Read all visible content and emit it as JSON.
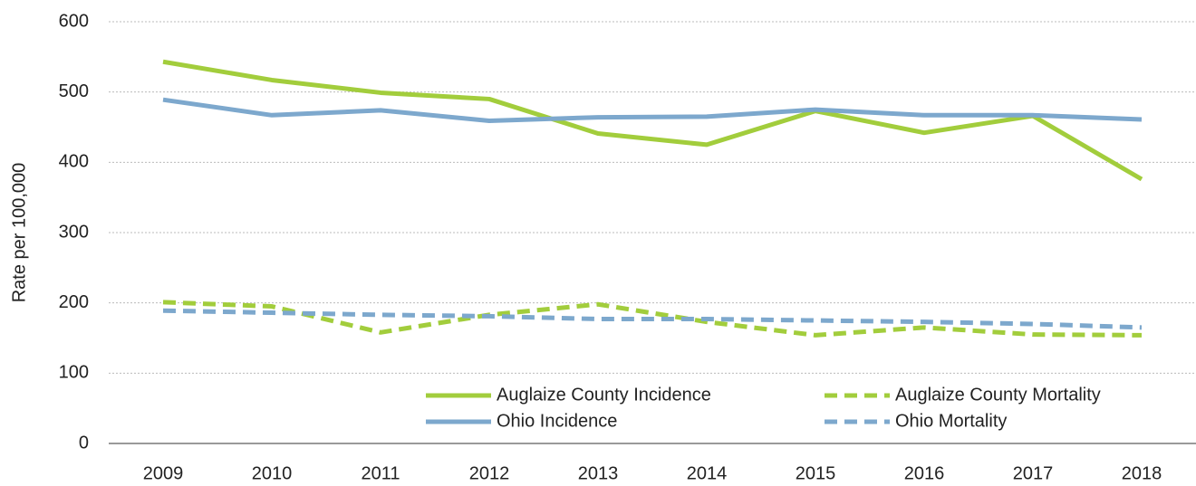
{
  "chart_data": {
    "type": "line",
    "y_label": "Rate per 100,000",
    "categories": [
      "2009",
      "2010",
      "2011",
      "2012",
      "2013",
      "2014",
      "2015",
      "2016",
      "2017",
      "2018"
    ],
    "series": [
      {
        "name": "Auglaize County Incidence",
        "color": "#a2cd3c",
        "dashed": false,
        "values": [
          543,
          517,
          499,
          490,
          441,
          425,
          473,
          442,
          466,
          376
        ]
      },
      {
        "name": "Auglaize County Mortality",
        "color": "#a2cd3c",
        "dashed": true,
        "values": [
          201,
          195,
          158,
          183,
          198,
          173,
          154,
          165,
          155,
          154
        ]
      },
      {
        "name": "Ohio Incidence",
        "color": "#7da8cd",
        "dashed": false,
        "values": [
          489,
          467,
          474,
          459,
          464,
          465,
          475,
          467,
          467,
          461
        ]
      },
      {
        "name": "Ohio Mortality",
        "color": "#7da8cd",
        "dashed": true,
        "values": [
          189,
          186,
          183,
          181,
          177,
          177,
          175,
          173,
          170,
          165
        ]
      }
    ],
    "ylim": [
      0,
      600
    ],
    "yticks": [
      0,
      100,
      200,
      300,
      400,
      500,
      600
    ],
    "grid": true,
    "legend": "lower right"
  }
}
